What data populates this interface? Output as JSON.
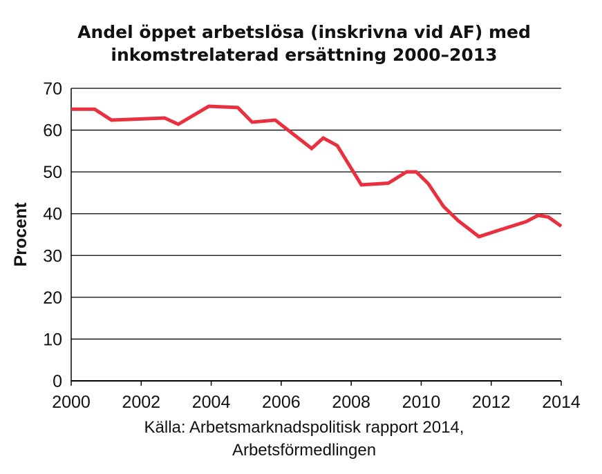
{
  "chart_data": {
    "type": "line",
    "title_lines": [
      "Andel öppet arbetslösa (inskrivna vid AF) med",
      "inkomstrelaterad ersättning 2000–2013"
    ],
    "xlabel": "",
    "ylabel": "Procent",
    "xlim": [
      2000,
      2014
    ],
    "ylim": [
      0,
      70
    ],
    "x_ticks": [
      "2000",
      "2002",
      "2004",
      "2006",
      "2008",
      "2010",
      "2012",
      "2014"
    ],
    "y_ticks": [
      "0",
      "10",
      "20",
      "30",
      "40",
      "50",
      "60",
      "70"
    ],
    "grid": "horizontal",
    "series": [
      {
        "name": "Andel",
        "color": "#e8303f",
        "x": [
          2000,
          2000.67,
          2001.15,
          2002.67,
          2003.06,
          2003.93,
          2004.76,
          2005.17,
          2005.83,
          2006.87,
          2007.2,
          2007.6,
          2008.29,
          2009.06,
          2009.58,
          2009.86,
          2010.2,
          2010.64,
          2011.06,
          2011.65,
          2012.2,
          2013.0,
          2013.34,
          2013.63,
          2014
        ],
        "y": [
          65.0,
          65.0,
          62.4,
          62.9,
          61.4,
          65.7,
          65.4,
          61.9,
          62.4,
          55.6,
          58.1,
          56.3,
          46.9,
          47.3,
          50.0,
          50.0,
          47.2,
          41.7,
          38.3,
          34.5,
          36.0,
          38.1,
          39.6,
          39.2,
          37.0
        ]
      }
    ],
    "source_lines": [
      "Källa: Arbetsmarknadspolitisk rapport 2014,",
      "Arbetsförmedlingen"
    ]
  }
}
